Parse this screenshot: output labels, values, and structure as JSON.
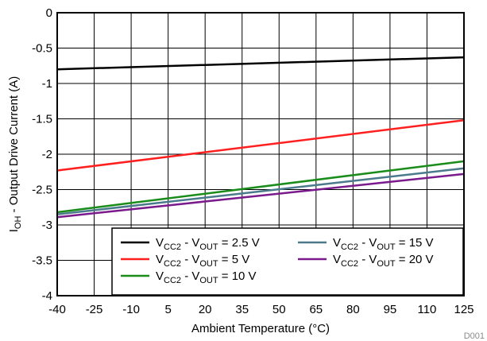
{
  "chart_data": {
    "type": "line",
    "xlabel": "Ambient Temperature (°C)",
    "ylabel": {
      "main": "I",
      "sub": "OH",
      "rest": " - Output Drive Current (A)"
    },
    "xlim": [
      -40,
      125
    ],
    "ylim": [
      -4,
      0
    ],
    "x_ticks": [
      -40,
      -25,
      -10,
      5,
      20,
      35,
      50,
      65,
      80,
      95,
      110,
      125
    ],
    "y_ticks": [
      0,
      -0.5,
      -1,
      -1.5,
      -2,
      -2.5,
      -3,
      -3.5,
      -4
    ],
    "grid": true,
    "legend_position": "bottom-right",
    "x": [
      -40,
      125
    ],
    "series": [
      {
        "name": "VCC2 - VOUT = 2.5 V",
        "label_parts": [
          "V",
          "CC2",
          " - V",
          "OUT",
          " = 2.5 V"
        ],
        "color": "#000000",
        "values": [
          -0.8,
          -0.63
        ]
      },
      {
        "name": "VCC2 - VOUT = 5 V",
        "label_parts": [
          "V",
          "CC2",
          " - V",
          "OUT",
          " = 5 V"
        ],
        "color": "#ff1f1f",
        "values": [
          -2.23,
          -1.52
        ]
      },
      {
        "name": "VCC2 - VOUT = 10 V",
        "label_parts": [
          "V",
          "CC2",
          " - V",
          "OUT",
          " = 10 V"
        ],
        "color": "#1a8c1a",
        "values": [
          -2.82,
          -2.1
        ]
      },
      {
        "name": "VCC2 - VOUT = 15 V",
        "label_parts": [
          "V",
          "CC2",
          " - V",
          "OUT",
          " = 15 V"
        ],
        "color": "#4a7a8c",
        "values": [
          -2.85,
          -2.2
        ]
      },
      {
        "name": "VCC2 - VOUT = 20 V",
        "label_parts": [
          "V",
          "CC2",
          " - V",
          "OUT",
          " = 20 V"
        ],
        "color": "#7a1a8c",
        "values": [
          -2.89,
          -2.28
        ]
      }
    ],
    "figure_code": "D001"
  }
}
